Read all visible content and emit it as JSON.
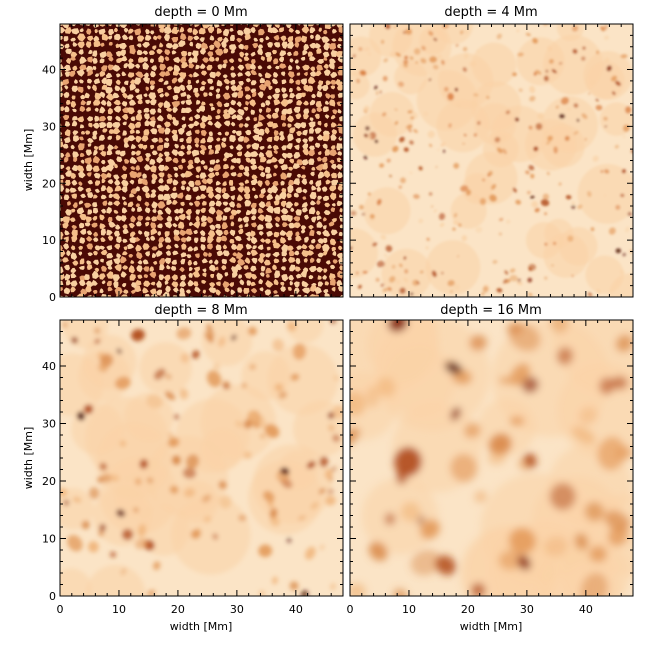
{
  "figure": {
    "panels": [
      {
        "title": "depth = 0 Mm",
        "pattern": "granulation"
      },
      {
        "title": "depth = 4 Mm",
        "pattern": "fine-blobs"
      },
      {
        "title": "depth = 8 Mm",
        "pattern": "medium-blobs"
      },
      {
        "title": "depth = 16 Mm",
        "pattern": "large-blobs"
      }
    ],
    "xlabel": "width [Mm]",
    "ylabel": "width [Mm]",
    "x_ticks": [
      "0",
      "10",
      "20",
      "30",
      "40"
    ],
    "y_ticks": [
      "0",
      "10",
      "20",
      "30",
      "40"
    ],
    "axis_range": [
      0,
      48
    ],
    "colormap": {
      "background": "#fbe4c6",
      "light": "#f9d2a6",
      "mid": "#e39a5a",
      "dark": "#b04a1a",
      "darkest": "#4a0a05"
    }
  }
}
